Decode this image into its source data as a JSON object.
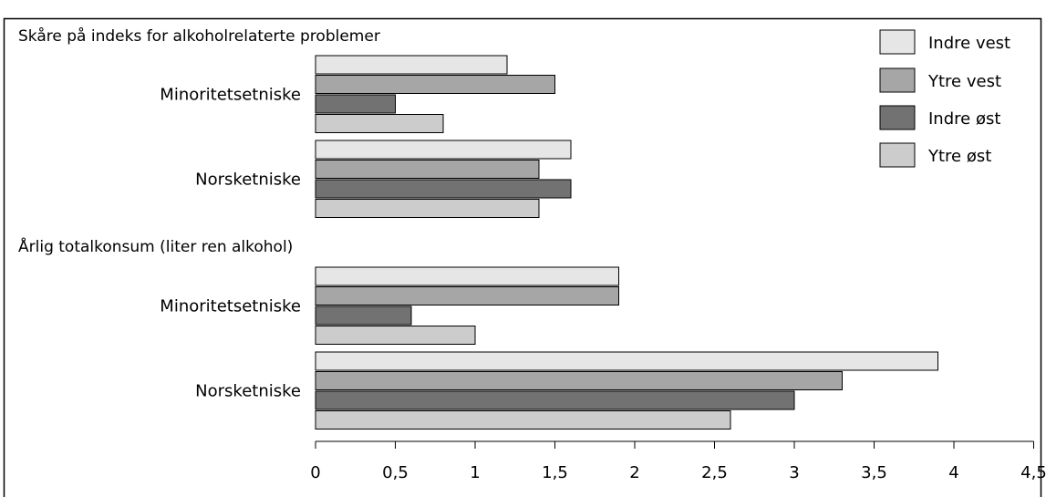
{
  "chart_data": {
    "type": "bar",
    "orientation": "horizontal",
    "title": "",
    "xlabel": "",
    "ylabel": "",
    "xlim": [
      0,
      4.5
    ],
    "x_ticks": [
      "0",
      "0,5",
      "1",
      "1,5",
      "2",
      "2,5",
      "3",
      "3,5",
      "4",
      "4,5"
    ],
    "grid": false,
    "legend_position": "top-right",
    "series": [
      {
        "name": "Indre vest",
        "color": "#e6e6e6"
      },
      {
        "name": "Ytre vest",
        "color": "#a6a6a6"
      },
      {
        "name": "Indre øst",
        "color": "#727272"
      },
      {
        "name": "Ytre øst",
        "color": "#cccccc"
      }
    ],
    "panels": [
      {
        "label": "Skåre på indeks for alkoholrelaterte problemer",
        "groups": [
          {
            "category": "Minoritetsetniske",
            "values": [
              1.2,
              1.5,
              0.5,
              0.8
            ]
          },
          {
            "category": "Norsketniske",
            "values": [
              1.6,
              1.4,
              1.6,
              1.4
            ]
          }
        ]
      },
      {
        "label": "Årlig totalkonsum (liter ren alkohol)",
        "groups": [
          {
            "category": "Minoritetsetniske",
            "values": [
              1.9,
              1.9,
              0.6,
              1.0
            ]
          },
          {
            "category": "Norsketniske",
            "values": [
              3.9,
              3.3,
              3.0,
              2.6
            ]
          }
        ]
      }
    ]
  }
}
